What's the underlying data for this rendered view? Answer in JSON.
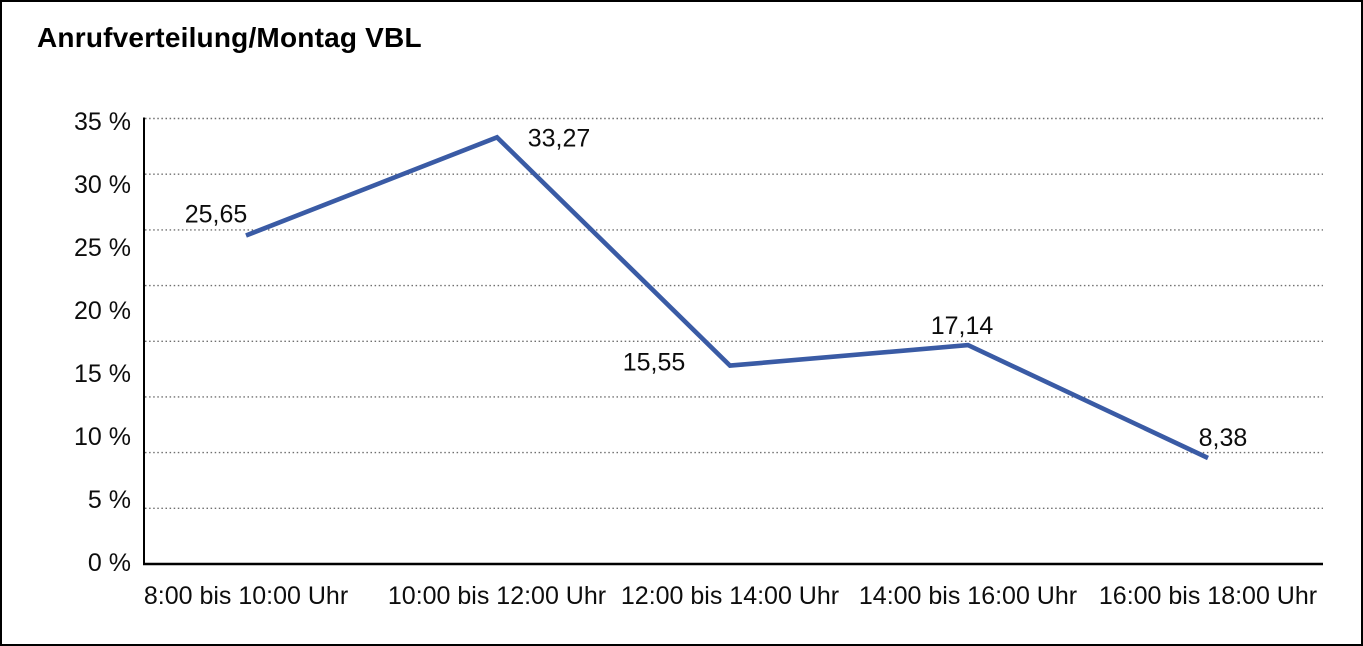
{
  "window": {
    "background": "#FFFFFF",
    "frame_color": "#000000"
  },
  "chart_data": {
    "type": "line",
    "title": "Anrufverteilung/Montag VBL",
    "categories": [
      "8:00 bis 10:00 Uhr",
      "10:00 bis 12:00 Uhr",
      "12:00 bis 14:00 Uhr",
      "14:00 bis 16:00 Uhr",
      "16:00 bis 18:00 Uhr"
    ],
    "values": [
      25.65,
      33.27,
      15.55,
      17.14,
      8.38
    ],
    "value_labels": [
      "25,65",
      "33,27",
      "15,55",
      "17,14",
      "8,38"
    ],
    "unit": "%",
    "xlabel": "",
    "ylabel": "",
    "y_tick_labels": [
      "35 %",
      "30 %",
      "25 %",
      "20 %",
      "15 %",
      "10 %",
      "5 %",
      "0 %"
    ],
    "ylim": [
      0,
      35
    ],
    "grid": {
      "horizontal": true,
      "style": "dotted",
      "color": "#6F6F6F"
    },
    "legend": "none",
    "line_color": "#3A5BA5",
    "axis_color": "#000000",
    "text_color": "#0D0D0D"
  }
}
